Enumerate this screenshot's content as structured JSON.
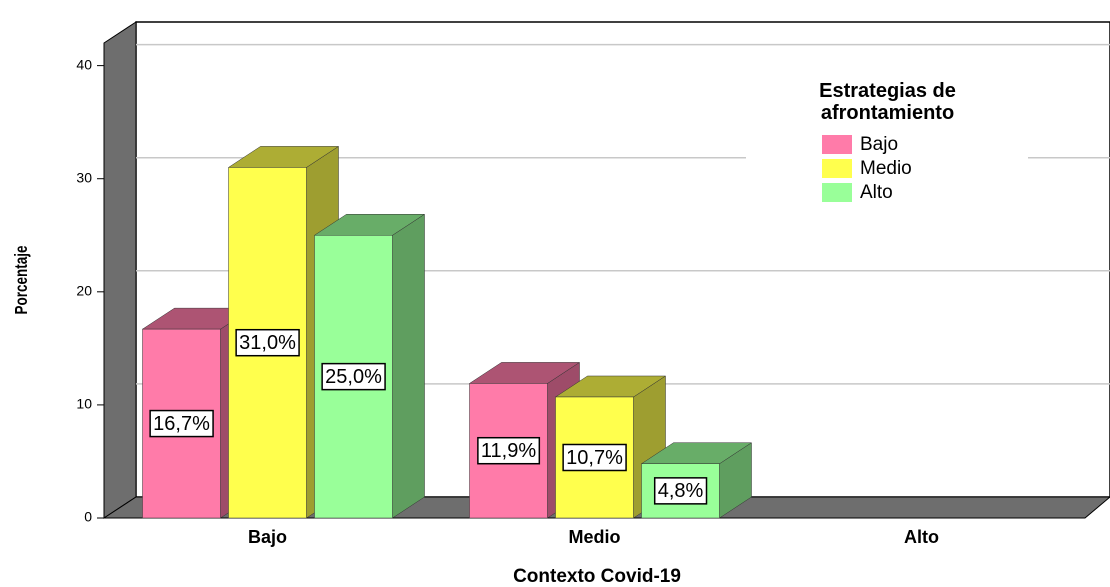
{
  "chart_data": {
    "type": "bar3d",
    "x_label": "Contexto Covid-19",
    "y_label": "Porcentaje",
    "categories": [
      "Bajo",
      "Medio",
      "Alto"
    ],
    "legend_title": "Estrategias de afrontamiento",
    "series": [
      {
        "name": "Bajo",
        "color": "#ff7ba9",
        "values": [
          16.7,
          11.9,
          null
        ],
        "value_labels": [
          "16,7%",
          "11,9%",
          null
        ]
      },
      {
        "name": "Medio",
        "color": "#ffff4d",
        "values": [
          31.0,
          10.7,
          null
        ],
        "value_labels": [
          "31,0%",
          "10,7%",
          null
        ]
      },
      {
        "name": "Alto",
        "color": "#99ff99",
        "values": [
          25.0,
          4.8,
          null
        ],
        "value_labels": [
          "25,0%",
          "4,8%",
          null
        ]
      }
    ],
    "ylim": [
      0,
      42
    ],
    "yticks": [
      0,
      10,
      20,
      30,
      40
    ],
    "grid": true
  }
}
